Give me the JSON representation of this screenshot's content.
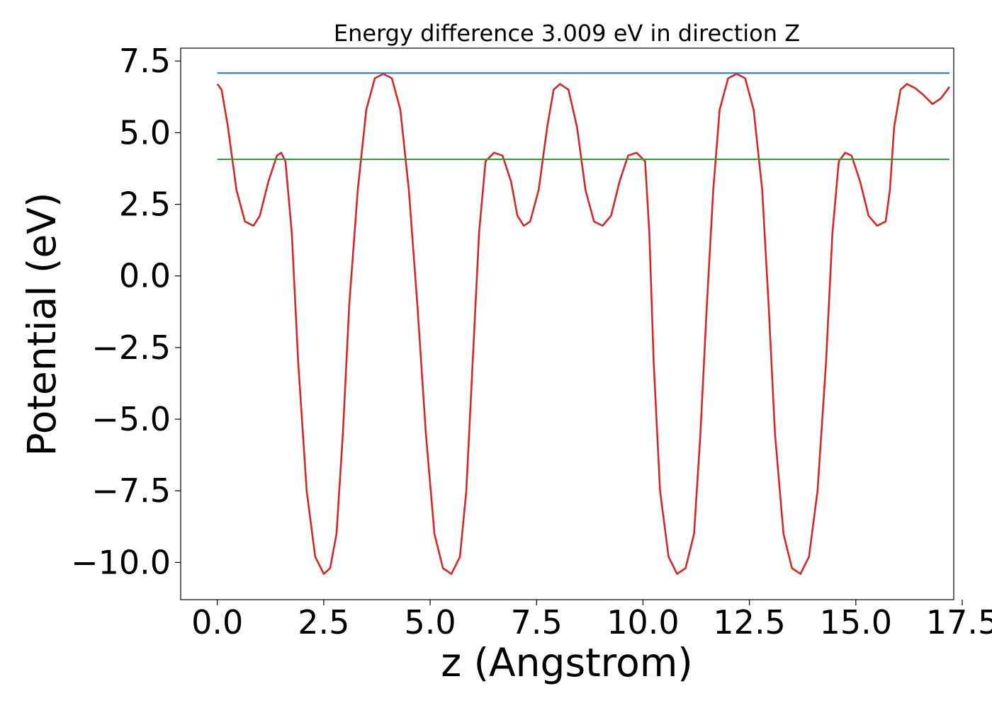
{
  "chart_data": {
    "type": "line",
    "title": "Energy difference 3.009 eV in direction Z",
    "xlabel": "z (Angstrom)",
    "ylabel": "Potential (eV)",
    "xlim": [
      -0.86,
      17.3
    ],
    "ylim": [
      -11.3,
      7.95
    ],
    "xticks": [
      0.0,
      2.5,
      5.0,
      7.5,
      10.0,
      12.5,
      15.0,
      17.5
    ],
    "xtick_labels": [
      "0.0",
      "2.5",
      "5.0",
      "7.5",
      "10.0",
      "12.5",
      "15.0",
      "17.5"
    ],
    "yticks": [
      7.5,
      5.0,
      2.5,
      0.0,
      -2.5,
      -5.0,
      -7.5,
      -10.0
    ],
    "ytick_labels": [
      "7.5",
      "5.0",
      "2.5",
      "0.0",
      "−2.5",
      "−5.0",
      "−7.5",
      "−10.0"
    ],
    "grid": false,
    "series": [
      {
        "color": "#d62728",
        "x": [
          0.0,
          0.1,
          0.25,
          0.45,
          0.65,
          0.85,
          1.0,
          1.2,
          1.4,
          1.5,
          1.6,
          1.75,
          1.9,
          2.1,
          2.3,
          2.5,
          2.65,
          2.8,
          2.95,
          3.1,
          3.3,
          3.5,
          3.7,
          3.9,
          4.1,
          4.3,
          4.5,
          4.7,
          4.9,
          5.1,
          5.3,
          5.5,
          5.7,
          5.85,
          6.0,
          6.15,
          6.3,
          6.5,
          6.7,
          6.9,
          7.05,
          7.2,
          7.35,
          7.55,
          7.75,
          7.9,
          8.05,
          8.25,
          8.45,
          8.65,
          8.85,
          9.05,
          9.25,
          9.45,
          9.65,
          9.85,
          10.05,
          10.15,
          10.25,
          10.4,
          10.6,
          10.8,
          11.0,
          11.2,
          11.35,
          11.5,
          11.65,
          11.8,
          12.0,
          12.2,
          12.4,
          12.6,
          12.8,
          12.95,
          13.1,
          13.3,
          13.5,
          13.7,
          13.9,
          14.1,
          14.3,
          14.45,
          14.6,
          14.75,
          14.9,
          15.1,
          15.3,
          15.5,
          15.7,
          15.8,
          15.9,
          16.05,
          16.2,
          16.4,
          16.6,
          16.8,
          17.0,
          17.2
        ],
        "y": [
          6.7,
          6.5,
          5.2,
          3.0,
          1.9,
          1.75,
          2.1,
          3.3,
          4.2,
          4.3,
          4.0,
          1.5,
          -3.0,
          -7.5,
          -9.8,
          -10.4,
          -10.2,
          -9.0,
          -5.5,
          -1.0,
          3.0,
          5.8,
          6.9,
          7.05,
          6.9,
          5.8,
          3.0,
          -1.0,
          -5.5,
          -9.0,
          -10.2,
          -10.4,
          -9.8,
          -7.5,
          -3.0,
          1.5,
          4.0,
          4.3,
          4.2,
          3.3,
          2.1,
          1.75,
          1.9,
          3.0,
          5.2,
          6.5,
          6.7,
          6.5,
          5.2,
          3.0,
          1.9,
          1.75,
          2.1,
          3.3,
          4.2,
          4.3,
          4.0,
          1.5,
          -3.0,
          -7.5,
          -9.8,
          -10.4,
          -10.2,
          -9.0,
          -5.5,
          -1.0,
          3.0,
          5.8,
          6.9,
          7.05,
          6.9,
          5.8,
          3.0,
          -1.0,
          -5.5,
          -9.0,
          -10.2,
          -10.4,
          -9.8,
          -7.5,
          -3.0,
          1.5,
          4.0,
          4.3,
          4.2,
          3.3,
          2.1,
          1.75,
          1.9,
          3.0,
          5.2,
          6.5,
          6.7,
          6.55,
          6.3,
          6.0,
          6.2,
          6.6
        ]
      },
      {
        "color": "#1f77b4",
        "x": [
          0.0,
          17.2
        ],
        "y": [
          7.08,
          7.08
        ]
      },
      {
        "color": "#2ca02c",
        "x": [
          0.0,
          17.2
        ],
        "y": [
          4.07,
          4.07
        ]
      }
    ]
  }
}
